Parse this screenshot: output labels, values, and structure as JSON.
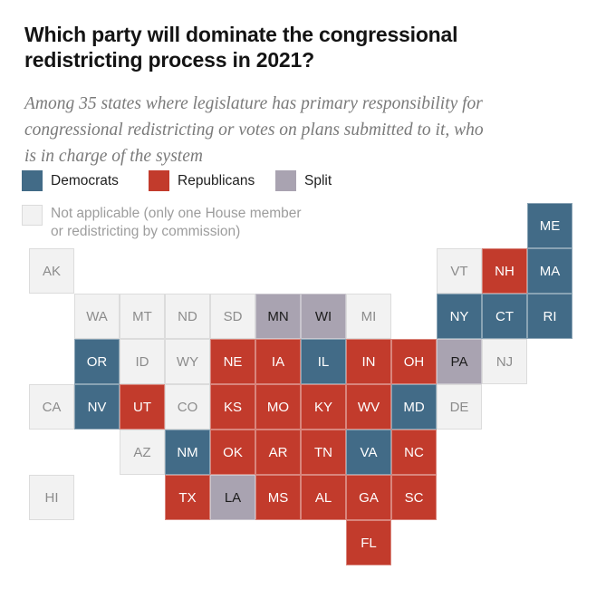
{
  "header": {
    "title": "Which party will dominate the congressional\nredistricting process in 2021?",
    "subtitle": "Among 35 states where legislature has primary responsibility for\ncongressional redistricting or votes on plans submitted to it, who\nis in charge of the system"
  },
  "legend": {
    "items": [
      {
        "key": "dem",
        "label": "Democrats",
        "color": "#426b87"
      },
      {
        "key": "rep",
        "label": "Republicans",
        "color": "#c23b2c"
      },
      {
        "key": "split",
        "label": "Split",
        "color": "#a9a3b1"
      }
    ],
    "not_applicable": {
      "label": "Not applicable (only one House member\nor redistricting by commission)",
      "color": "#f2f2f2",
      "border_color": "#dbdbdb"
    }
  },
  "colors": {
    "dem": "#426b87",
    "rep": "#c23b2c",
    "split": "#a9a3b1",
    "na": "#f2f2f2",
    "na_border": "#dcdcdc",
    "na_text": "#8c8c8c",
    "split_text": "#1c1c1c",
    "tile_text": "#ffffff"
  },
  "chart_data": {
    "type": "heatmap",
    "subtype": "us-state-tile-cartogram",
    "title": "Which party will dominate the congressional redistricting process in 2021?",
    "subtitle": "Among 35 states where legislature has primary responsibility for congressional redistricting or votes on plans submitted to it, who is in charge of the system",
    "legend": [
      "Democrats",
      "Republicans",
      "Split",
      "Not applicable (only one House member or redistricting by commission)"
    ],
    "grid": {
      "columns": 12,
      "rows": 8
    },
    "states": [
      {
        "abbr": "ME",
        "row": 1,
        "col": 12,
        "control": "dem"
      },
      {
        "abbr": "AK",
        "row": 2,
        "col": 1,
        "control": "na"
      },
      {
        "abbr": "VT",
        "row": 2,
        "col": 10,
        "control": "na"
      },
      {
        "abbr": "NH",
        "row": 2,
        "col": 11,
        "control": "rep"
      },
      {
        "abbr": "MA",
        "row": 2,
        "col": 12,
        "control": "dem"
      },
      {
        "abbr": "WA",
        "row": 3,
        "col": 2,
        "control": "na"
      },
      {
        "abbr": "MT",
        "row": 3,
        "col": 3,
        "control": "na"
      },
      {
        "abbr": "ND",
        "row": 3,
        "col": 4,
        "control": "na"
      },
      {
        "abbr": "SD",
        "row": 3,
        "col": 5,
        "control": "na"
      },
      {
        "abbr": "MN",
        "row": 3,
        "col": 6,
        "control": "split"
      },
      {
        "abbr": "WI",
        "row": 3,
        "col": 7,
        "control": "split"
      },
      {
        "abbr": "MI",
        "row": 3,
        "col": 8,
        "control": "na"
      },
      {
        "abbr": "NY",
        "row": 3,
        "col": 10,
        "control": "dem"
      },
      {
        "abbr": "CT",
        "row": 3,
        "col": 11,
        "control": "dem"
      },
      {
        "abbr": "RI",
        "row": 3,
        "col": 12,
        "control": "dem"
      },
      {
        "abbr": "OR",
        "row": 4,
        "col": 2,
        "control": "dem"
      },
      {
        "abbr": "ID",
        "row": 4,
        "col": 3,
        "control": "na"
      },
      {
        "abbr": "WY",
        "row": 4,
        "col": 4,
        "control": "na"
      },
      {
        "abbr": "NE",
        "row": 4,
        "col": 5,
        "control": "rep"
      },
      {
        "abbr": "IA",
        "row": 4,
        "col": 6,
        "control": "rep"
      },
      {
        "abbr": "IL",
        "row": 4,
        "col": 7,
        "control": "dem"
      },
      {
        "abbr": "IN",
        "row": 4,
        "col": 8,
        "control": "rep"
      },
      {
        "abbr": "OH",
        "row": 4,
        "col": 9,
        "control": "rep"
      },
      {
        "abbr": "PA",
        "row": 4,
        "col": 10,
        "control": "split"
      },
      {
        "abbr": "NJ",
        "row": 4,
        "col": 11,
        "control": "na"
      },
      {
        "abbr": "CA",
        "row": 5,
        "col": 1,
        "control": "na"
      },
      {
        "abbr": "NV",
        "row": 5,
        "col": 2,
        "control": "dem"
      },
      {
        "abbr": "UT",
        "row": 5,
        "col": 3,
        "control": "rep"
      },
      {
        "abbr": "CO",
        "row": 5,
        "col": 4,
        "control": "na"
      },
      {
        "abbr": "KS",
        "row": 5,
        "col": 5,
        "control": "rep"
      },
      {
        "abbr": "MO",
        "row": 5,
        "col": 6,
        "control": "rep"
      },
      {
        "abbr": "KY",
        "row": 5,
        "col": 7,
        "control": "rep"
      },
      {
        "abbr": "WV",
        "row": 5,
        "col": 8,
        "control": "rep"
      },
      {
        "abbr": "MD",
        "row": 5,
        "col": 9,
        "control": "dem"
      },
      {
        "abbr": "DE",
        "row": 5,
        "col": 10,
        "control": "na"
      },
      {
        "abbr": "AZ",
        "row": 6,
        "col": 3,
        "control": "na"
      },
      {
        "abbr": "NM",
        "row": 6,
        "col": 4,
        "control": "dem"
      },
      {
        "abbr": "OK",
        "row": 6,
        "col": 5,
        "control": "rep"
      },
      {
        "abbr": "AR",
        "row": 6,
        "col": 6,
        "control": "rep"
      },
      {
        "abbr": "TN",
        "row": 6,
        "col": 7,
        "control": "rep"
      },
      {
        "abbr": "VA",
        "row": 6,
        "col": 8,
        "control": "dem"
      },
      {
        "abbr": "NC",
        "row": 6,
        "col": 9,
        "control": "rep"
      },
      {
        "abbr": "HI",
        "row": 7,
        "col": 1,
        "control": "na"
      },
      {
        "abbr": "TX",
        "row": 7,
        "col": 4,
        "control": "rep"
      },
      {
        "abbr": "LA",
        "row": 7,
        "col": 5,
        "control": "split"
      },
      {
        "abbr": "MS",
        "row": 7,
        "col": 6,
        "control": "rep"
      },
      {
        "abbr": "AL",
        "row": 7,
        "col": 7,
        "control": "rep"
      },
      {
        "abbr": "GA",
        "row": 7,
        "col": 8,
        "control": "rep"
      },
      {
        "abbr": "SC",
        "row": 7,
        "col": 9,
        "control": "rep"
      },
      {
        "abbr": "FL",
        "row": 8,
        "col": 8,
        "control": "rep"
      }
    ]
  }
}
